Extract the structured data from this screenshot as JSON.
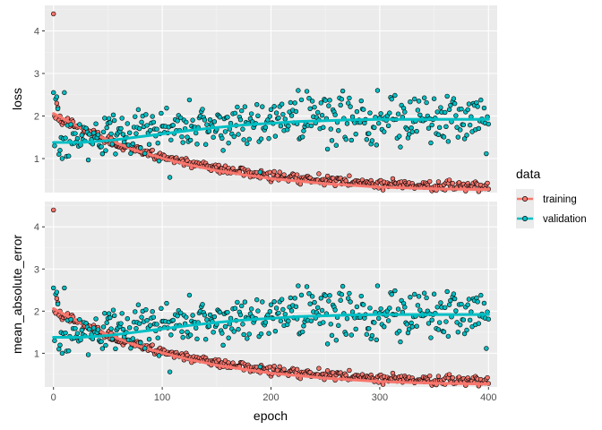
{
  "chart_data": {
    "type": "scatter",
    "title": "",
    "xlabel": "epoch",
    "xlim": [
      -8,
      408
    ],
    "x_ticks": [
      0,
      100,
      200,
      300,
      400
    ],
    "x_tick_labels": [
      "0",
      "100",
      "200",
      "300",
      "400"
    ],
    "legend": {
      "title": "data",
      "placement": "right",
      "entries": [
        {
          "name": "training",
          "color": "#F8766D"
        },
        {
          "name": "validation",
          "color": "#00BFC4"
        }
      ]
    },
    "panels": [
      {
        "ylabel": "loss",
        "ylim": [
          0.2,
          4.6
        ],
        "y_ticks": [
          1,
          2,
          3,
          4
        ],
        "y_tick_labels": [
          "1",
          "2",
          "3",
          "4"
        ],
        "training": {
          "first_epochs": [
            [
              0,
              4.4
            ],
            [
              1,
              2.0
            ],
            [
              2,
              1.95
            ],
            [
              3,
              2.3
            ],
            [
              4,
              2.2
            ],
            [
              5,
              1.9
            ],
            [
              6,
              2.0
            ],
            [
              7,
              1.85
            ],
            [
              8,
              1.8
            ],
            [
              10,
              1.9
            ]
          ],
          "trend": {
            "start": 2.05,
            "end": 0.27,
            "decay_epochs": 120
          },
          "noise": 0.06
        },
        "validation": {
          "first_epochs": [
            [
              0,
              2.55
            ],
            [
              1,
              1.3
            ],
            [
              2,
              2.4
            ],
            [
              3,
              2.45
            ],
            [
              5,
              1.1
            ],
            [
              8,
              1.0
            ],
            [
              10,
              2.55
            ],
            [
              12,
              1.05
            ],
            [
              15,
              1.4
            ]
          ],
          "trend": {
            "start": 1.38,
            "end": 1.92,
            "plateau_epoch": 260
          },
          "noise": 0.28,
          "outliers": [
            [
              47,
              1.95
            ],
            [
              78,
              2.15
            ],
            [
              178,
              2.55
            ],
            [
              225,
              2.6
            ],
            [
              238,
              2.35
            ],
            [
              298,
              2.6
            ],
            [
              332,
              2.4
            ],
            [
              336,
              2.35
            ],
            [
              365,
              2.25
            ],
            [
              269,
              1.45
            ],
            [
              178,
              1.35
            ],
            [
              230,
              1.65
            ],
            [
              268,
              1.5
            ],
            [
              380,
              1.55
            ]
          ]
        },
        "smooth": {
          "training": [
            [
              0,
              2.06
            ],
            [
              25,
              1.72
            ],
            [
              50,
              1.44
            ],
            [
              75,
              1.2
            ],
            [
              100,
              1.01
            ],
            [
              125,
              0.85
            ],
            [
              150,
              0.72
            ],
            [
              175,
              0.62
            ],
            [
              200,
              0.53
            ],
            [
              225,
              0.47
            ],
            [
              250,
              0.41
            ],
            [
              275,
              0.37
            ],
            [
              300,
              0.33
            ],
            [
              325,
              0.31
            ],
            [
              350,
              0.29
            ],
            [
              375,
              0.28
            ],
            [
              400,
              0.27
            ]
          ],
          "validation": [
            [
              0,
              1.38
            ],
            [
              25,
              1.38
            ],
            [
              50,
              1.42
            ],
            [
              75,
              1.5
            ],
            [
              100,
              1.58
            ],
            [
              125,
              1.66
            ],
            [
              150,
              1.73
            ],
            [
              175,
              1.79
            ],
            [
              200,
              1.83
            ],
            [
              225,
              1.87
            ],
            [
              250,
              1.89
            ],
            [
              275,
              1.91
            ],
            [
              300,
              1.92
            ],
            [
              325,
              1.92
            ],
            [
              350,
              1.92
            ],
            [
              375,
              1.92
            ],
            [
              400,
              1.92
            ]
          ]
        }
      },
      {
        "ylabel": "mean_absolute_error",
        "ylim": [
          0.2,
          4.6
        ],
        "y_ticks": [
          1,
          2,
          3,
          4
        ],
        "y_tick_labels": [
          "1",
          "2",
          "3",
          "4"
        ],
        "training": {
          "first_epochs": [
            [
              0,
              4.4
            ],
            [
              1,
              2.0
            ],
            [
              2,
              1.95
            ],
            [
              3,
              2.3
            ],
            [
              4,
              2.2
            ],
            [
              5,
              1.9
            ],
            [
              6,
              2.0
            ],
            [
              7,
              1.85
            ],
            [
              8,
              1.8
            ],
            [
              10,
              1.9
            ]
          ],
          "trend": {
            "start": 2.05,
            "end": 0.27,
            "decay_epochs": 120
          },
          "noise": 0.06
        },
        "validation": {
          "first_epochs": [
            [
              0,
              2.55
            ],
            [
              1,
              1.3
            ],
            [
              2,
              2.4
            ],
            [
              3,
              2.45
            ],
            [
              5,
              1.1
            ],
            [
              8,
              1.0
            ],
            [
              10,
              2.55
            ],
            [
              12,
              1.05
            ],
            [
              15,
              1.4
            ]
          ],
          "trend": {
            "start": 1.38,
            "end": 1.92,
            "plateau_epoch": 260
          },
          "noise": 0.28,
          "outliers": [
            [
              47,
              1.95
            ],
            [
              78,
              2.15
            ],
            [
              178,
              2.55
            ],
            [
              225,
              2.6
            ],
            [
              238,
              2.35
            ],
            [
              298,
              2.6
            ],
            [
              332,
              2.4
            ],
            [
              336,
              2.35
            ],
            [
              365,
              2.25
            ],
            [
              269,
              1.45
            ],
            [
              178,
              1.35
            ],
            [
              230,
              1.65
            ],
            [
              268,
              1.5
            ],
            [
              380,
              1.55
            ]
          ]
        },
        "smooth": {
          "training": [
            [
              0,
              2.06
            ],
            [
              25,
              1.72
            ],
            [
              50,
              1.44
            ],
            [
              75,
              1.2
            ],
            [
              100,
              1.01
            ],
            [
              125,
              0.85
            ],
            [
              150,
              0.72
            ],
            [
              175,
              0.62
            ],
            [
              200,
              0.53
            ],
            [
              225,
              0.47
            ],
            [
              250,
              0.41
            ],
            [
              275,
              0.37
            ],
            [
              300,
              0.33
            ],
            [
              325,
              0.31
            ],
            [
              350,
              0.29
            ],
            [
              375,
              0.28
            ],
            [
              400,
              0.27
            ]
          ],
          "validation": [
            [
              0,
              1.38
            ],
            [
              25,
              1.38
            ],
            [
              50,
              1.42
            ],
            [
              75,
              1.5
            ],
            [
              100,
              1.58
            ],
            [
              125,
              1.66
            ],
            [
              150,
              1.73
            ],
            [
              175,
              1.79
            ],
            [
              200,
              1.83
            ],
            [
              225,
              1.87
            ],
            [
              250,
              1.89
            ],
            [
              275,
              1.91
            ],
            [
              300,
              1.92
            ],
            [
              325,
              1.92
            ],
            [
              350,
              1.92
            ],
            [
              375,
              1.92
            ],
            [
              400,
              1.92
            ]
          ]
        }
      }
    ],
    "epochs": 401,
    "theme": {
      "panel_bg": "#EBEBEB",
      "grid_major": "#FFFFFF",
      "point_outline": "#000000"
    }
  }
}
